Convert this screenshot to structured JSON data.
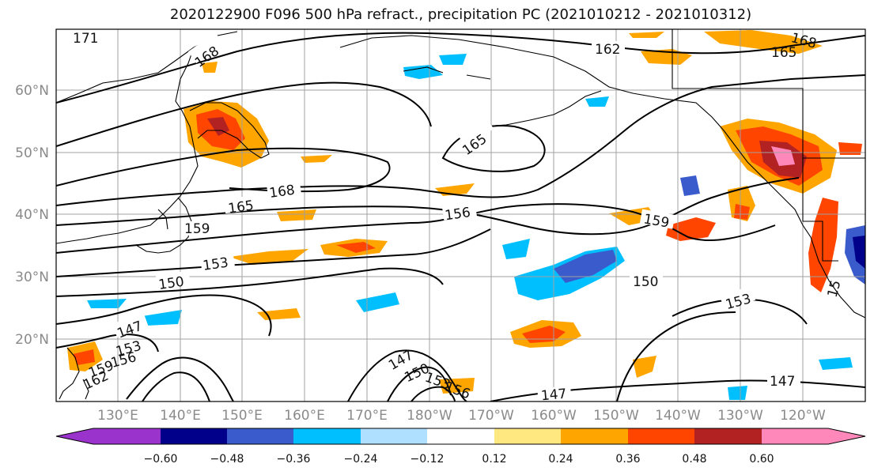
{
  "title": "2020122900 F096 500 hPa refract., precipitation PC (2021010212 - 2021010312)",
  "latitude_labels": [
    "60°N",
    "50°N",
    "40°N",
    "30°N",
    "20°N"
  ],
  "longitude_labels": [
    "130°E",
    "140°E",
    "150°E",
    "160°E",
    "170°E",
    "180°W",
    "170°W",
    "160°W",
    "150°W",
    "140°W",
    "130°W",
    "120°W"
  ],
  "colorbar": {
    "tick_labels": [
      "−0.60",
      "−0.48",
      "−0.36",
      "−0.24",
      "−0.12",
      "0.12",
      "0.24",
      "0.36",
      "0.48",
      "0.60"
    ],
    "colors": [
      "#9933cc",
      "#00008b",
      "#3a5bcc",
      "#00bfff",
      "#afe0ff",
      "#ffffff",
      "#ffe880",
      "#ffa500",
      "#ff4500",
      "#b22222",
      "#ff88bb"
    ]
  },
  "contour_labels": [
    "171",
    "168",
    "162",
    "168",
    "165",
    "165",
    "168",
    "165",
    "156",
    "159",
    "159",
    "153",
    "150",
    "150",
    "153",
    "147",
    "153",
    "156",
    "159",
    "162",
    "147",
    "150",
    "153",
    "156",
    "147",
    "147",
    "15"
  ],
  "colors": {
    "land_outline": "#000000",
    "grid": "#a0a0a0",
    "label_gray": "#8a8a8a"
  }
}
